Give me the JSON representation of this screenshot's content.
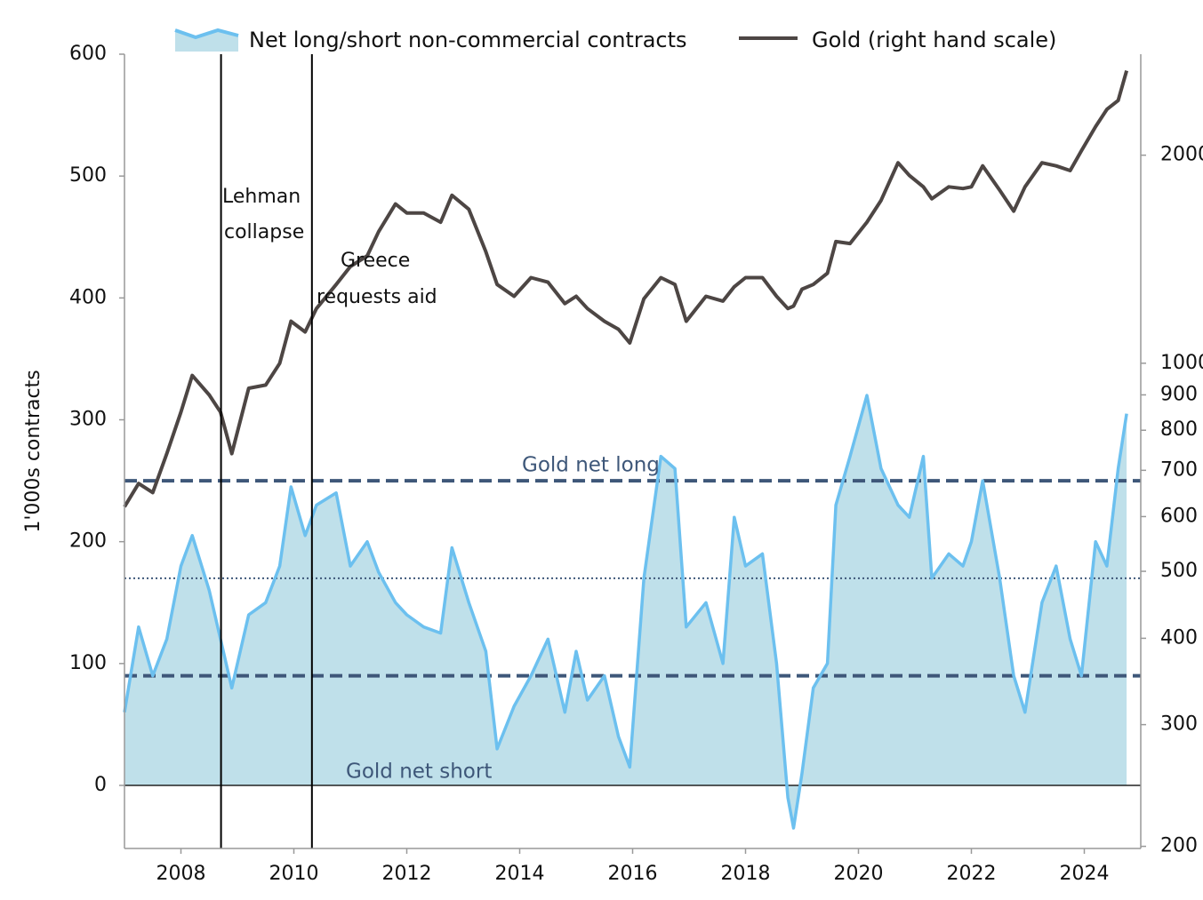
{
  "chart_data": {
    "type": "line",
    "ylabel": "1'000s contracts",
    "x": [
      2007.0,
      2007.25,
      2007.5,
      2007.75,
      2008.0,
      2008.2,
      2008.5,
      2008.7,
      2008.9,
      2009.2,
      2009.5,
      2009.75,
      2009.95,
      2010.2,
      2010.4,
      2010.75,
      2011.0,
      2011.3,
      2011.5,
      2011.8,
      2012.0,
      2012.3,
      2012.6,
      2012.8,
      2013.1,
      2013.4,
      2013.6,
      2013.9,
      2014.2,
      2014.5,
      2014.8,
      2015.0,
      2015.2,
      2015.5,
      2015.75,
      2015.95,
      2016.2,
      2016.5,
      2016.75,
      2016.95,
      2017.3,
      2017.6,
      2017.8,
      2018.0,
      2018.3,
      2018.55,
      2018.75,
      2018.85,
      2019.0,
      2019.2,
      2019.45,
      2019.6,
      2019.85,
      2020.15,
      2020.4,
      2020.7,
      2020.9,
      2021.15,
      2021.3,
      2021.6,
      2021.85,
      2022.0,
      2022.2,
      2022.5,
      2022.75,
      2022.95,
      2023.25,
      2023.5,
      2023.75,
      2023.95,
      2024.2,
      2024.4,
      2024.6,
      2024.75
    ],
    "series": [
      {
        "name": "Net long/short non-commercial contracts",
        "color": "#6cc0ef",
        "fill": "#bfe0ea",
        "values": [
          60,
          130,
          90,
          120,
          180,
          205,
          160,
          120,
          80,
          140,
          150,
          180,
          245,
          205,
          230,
          240,
          180,
          200,
          175,
          150,
          140,
          130,
          125,
          195,
          150,
          110,
          30,
          65,
          90,
          120,
          60,
          110,
          70,
          90,
          40,
          15,
          170,
          270,
          260,
          130,
          150,
          100,
          220,
          180,
          190,
          100,
          -10,
          -35,
          10,
          80,
          100,
          230,
          270,
          320,
          260,
          230,
          220,
          270,
          170,
          190,
          180,
          200,
          250,
          170,
          90,
          60,
          150,
          180,
          120,
          90,
          200,
          180,
          260,
          305
        ]
      },
      {
        "name": "Gold (right hand scale)",
        "color": "#4d4644",
        "axis": "y2",
        "values": [
          620,
          670,
          650,
          740,
          850,
          960,
          900,
          850,
          740,
          920,
          930,
          1000,
          1150,
          1110,
          1200,
          1300,
          1380,
          1430,
          1550,
          1700,
          1650,
          1650,
          1600,
          1750,
          1670,
          1450,
          1300,
          1250,
          1330,
          1310,
          1220,
          1250,
          1200,
          1150,
          1120,
          1070,
          1240,
          1330,
          1300,
          1150,
          1250,
          1230,
          1290,
          1330,
          1330,
          1250,
          1200,
          1210,
          1280,
          1300,
          1350,
          1500,
          1490,
          1600,
          1720,
          1950,
          1870,
          1800,
          1730,
          1800,
          1790,
          1800,
          1930,
          1780,
          1660,
          1800,
          1950,
          1930,
          1900,
          2030,
          2200,
          2330,
          2400,
          2650
        ]
      }
    ],
    "xlim": [
      2007,
      2025
    ],
    "xticks": [
      2008,
      2010,
      2012,
      2014,
      2016,
      2018,
      2020,
      2022,
      2024
    ],
    "ylim": [
      -50,
      600
    ],
    "yticks": [
      0,
      100,
      200,
      300,
      400,
      500,
      600
    ],
    "y2lim": [
      200,
      2800
    ],
    "y2log": true,
    "y2ticks": [
      200,
      300,
      400,
      500,
      600,
      700,
      800,
      900,
      1000,
      2000
    ],
    "reference_lines": [
      {
        "value": 250,
        "style": "dashed"
      },
      {
        "value": 170,
        "style": "dotted"
      },
      {
        "value": 90,
        "style": "dashed"
      }
    ],
    "event_lines": [
      {
        "x": 2008.71,
        "label": [
          "Lehman",
          "collapse"
        ]
      },
      {
        "x": 2010.32,
        "label": [
          "Greece",
          "requests aid"
        ]
      }
    ],
    "annotations": [
      "Gold net long",
      "Gold net short"
    ]
  }
}
